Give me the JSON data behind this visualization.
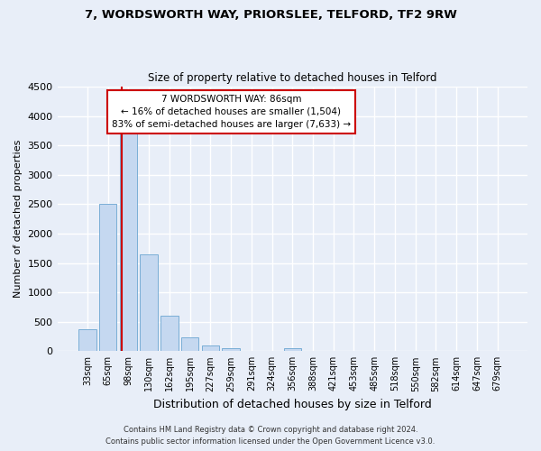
{
  "title1": "7, WORDSWORTH WAY, PRIORSLEE, TELFORD, TF2 9RW",
  "title2": "Size of property relative to detached houses in Telford",
  "xlabel": "Distribution of detached houses by size in Telford",
  "ylabel": "Number of detached properties",
  "categories": [
    "33sqm",
    "65sqm",
    "98sqm",
    "130sqm",
    "162sqm",
    "195sqm",
    "227sqm",
    "259sqm",
    "291sqm",
    "324sqm",
    "356sqm",
    "388sqm",
    "421sqm",
    "453sqm",
    "485sqm",
    "518sqm",
    "550sqm",
    "582sqm",
    "614sqm",
    "647sqm",
    "679sqm"
  ],
  "values": [
    375,
    2500,
    3730,
    1640,
    600,
    240,
    95,
    50,
    0,
    0,
    50,
    0,
    0,
    0,
    0,
    0,
    0,
    0,
    0,
    0,
    0
  ],
  "bar_color": "#c5d8f0",
  "bar_edge_color": "#7aaed6",
  "annotation_title": "7 WORDSWORTH WAY: 86sqm",
  "annotation_line1": "← 16% of detached houses are smaller (1,504)",
  "annotation_line2": "83% of semi-detached houses are larger (7,633) →",
  "annotation_box_color": "#ffffff",
  "annotation_box_edge_color": "#cc0000",
  "vline_color": "#cc0000",
  "vline_x": 1.68,
  "ylim": [
    0,
    4500
  ],
  "yticks": [
    0,
    500,
    1000,
    1500,
    2000,
    2500,
    3000,
    3500,
    4000,
    4500
  ],
  "footer1": "Contains HM Land Registry data © Crown copyright and database right 2024.",
  "footer2": "Contains public sector information licensed under the Open Government Licence v3.0.",
  "bg_color": "#e8eef8",
  "grid_color": "#ffffff"
}
